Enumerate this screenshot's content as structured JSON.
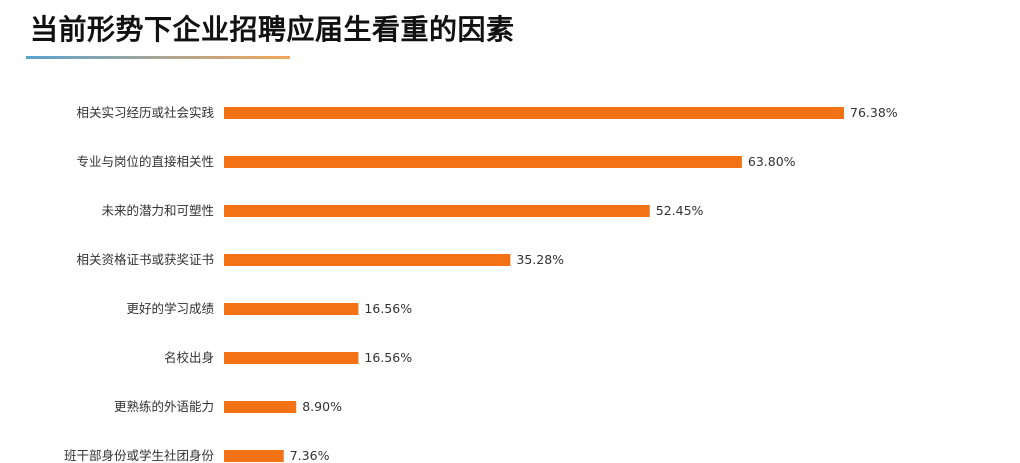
{
  "title": "当前形势下企业招聘应届生看重的因素",
  "colors": {
    "bar": "#F47216",
    "rule_start": "#5BA3D0",
    "rule_end": "#F2A65A"
  },
  "chart_data": {
    "type": "bar",
    "orientation": "horizontal",
    "title": "当前形势下企业招聘应届生看重的因素",
    "xlabel": "",
    "ylabel": "",
    "xlim": [
      0,
      80
    ],
    "grid": false,
    "legend": "none",
    "categories": [
      "相关实习经历或社会实践",
      "专业与岗位的直接相关性",
      "未来的潜力和可塑性",
      "相关资格证书或获奖证书",
      "更好的学习成绩",
      "名校出身",
      "更熟练的外语能力",
      "班干部身份或学生社团身份"
    ],
    "values": [
      76.38,
      63.8,
      52.45,
      35.28,
      16.56,
      16.56,
      8.9,
      7.36
    ],
    "value_labels": [
      "76.38%",
      "63.80%",
      "52.45%",
      "35.28%",
      "16.56%",
      "16.56%",
      "8.90%",
      "7.36%"
    ]
  }
}
